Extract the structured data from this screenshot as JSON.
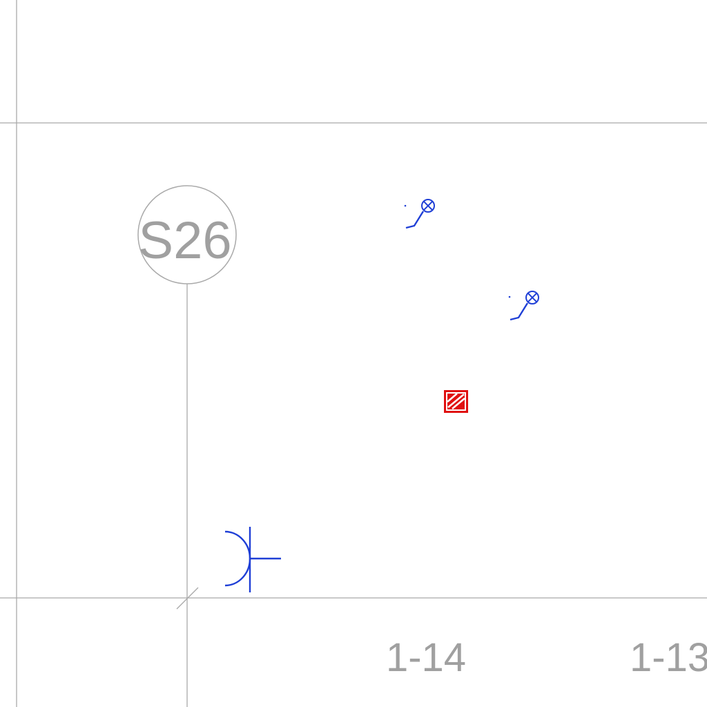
{
  "grid": {
    "bubble_label": "S26"
  },
  "labels": {
    "area_left": "1-14",
    "area_right": "1-13"
  },
  "symbols": [
    {
      "name": "wall-light-icon",
      "color": "#1f3fd6"
    },
    {
      "name": "wall-light-icon",
      "color": "#1f3fd6"
    },
    {
      "name": "fire-alarm-panel-icon",
      "color": "#e01010"
    },
    {
      "name": "socket-outlet-icon",
      "color": "#1f3fd6"
    }
  ],
  "colors": {
    "grid": "#a9a9a9",
    "electrical": "#1f3fd6",
    "fire": "#e01010"
  }
}
